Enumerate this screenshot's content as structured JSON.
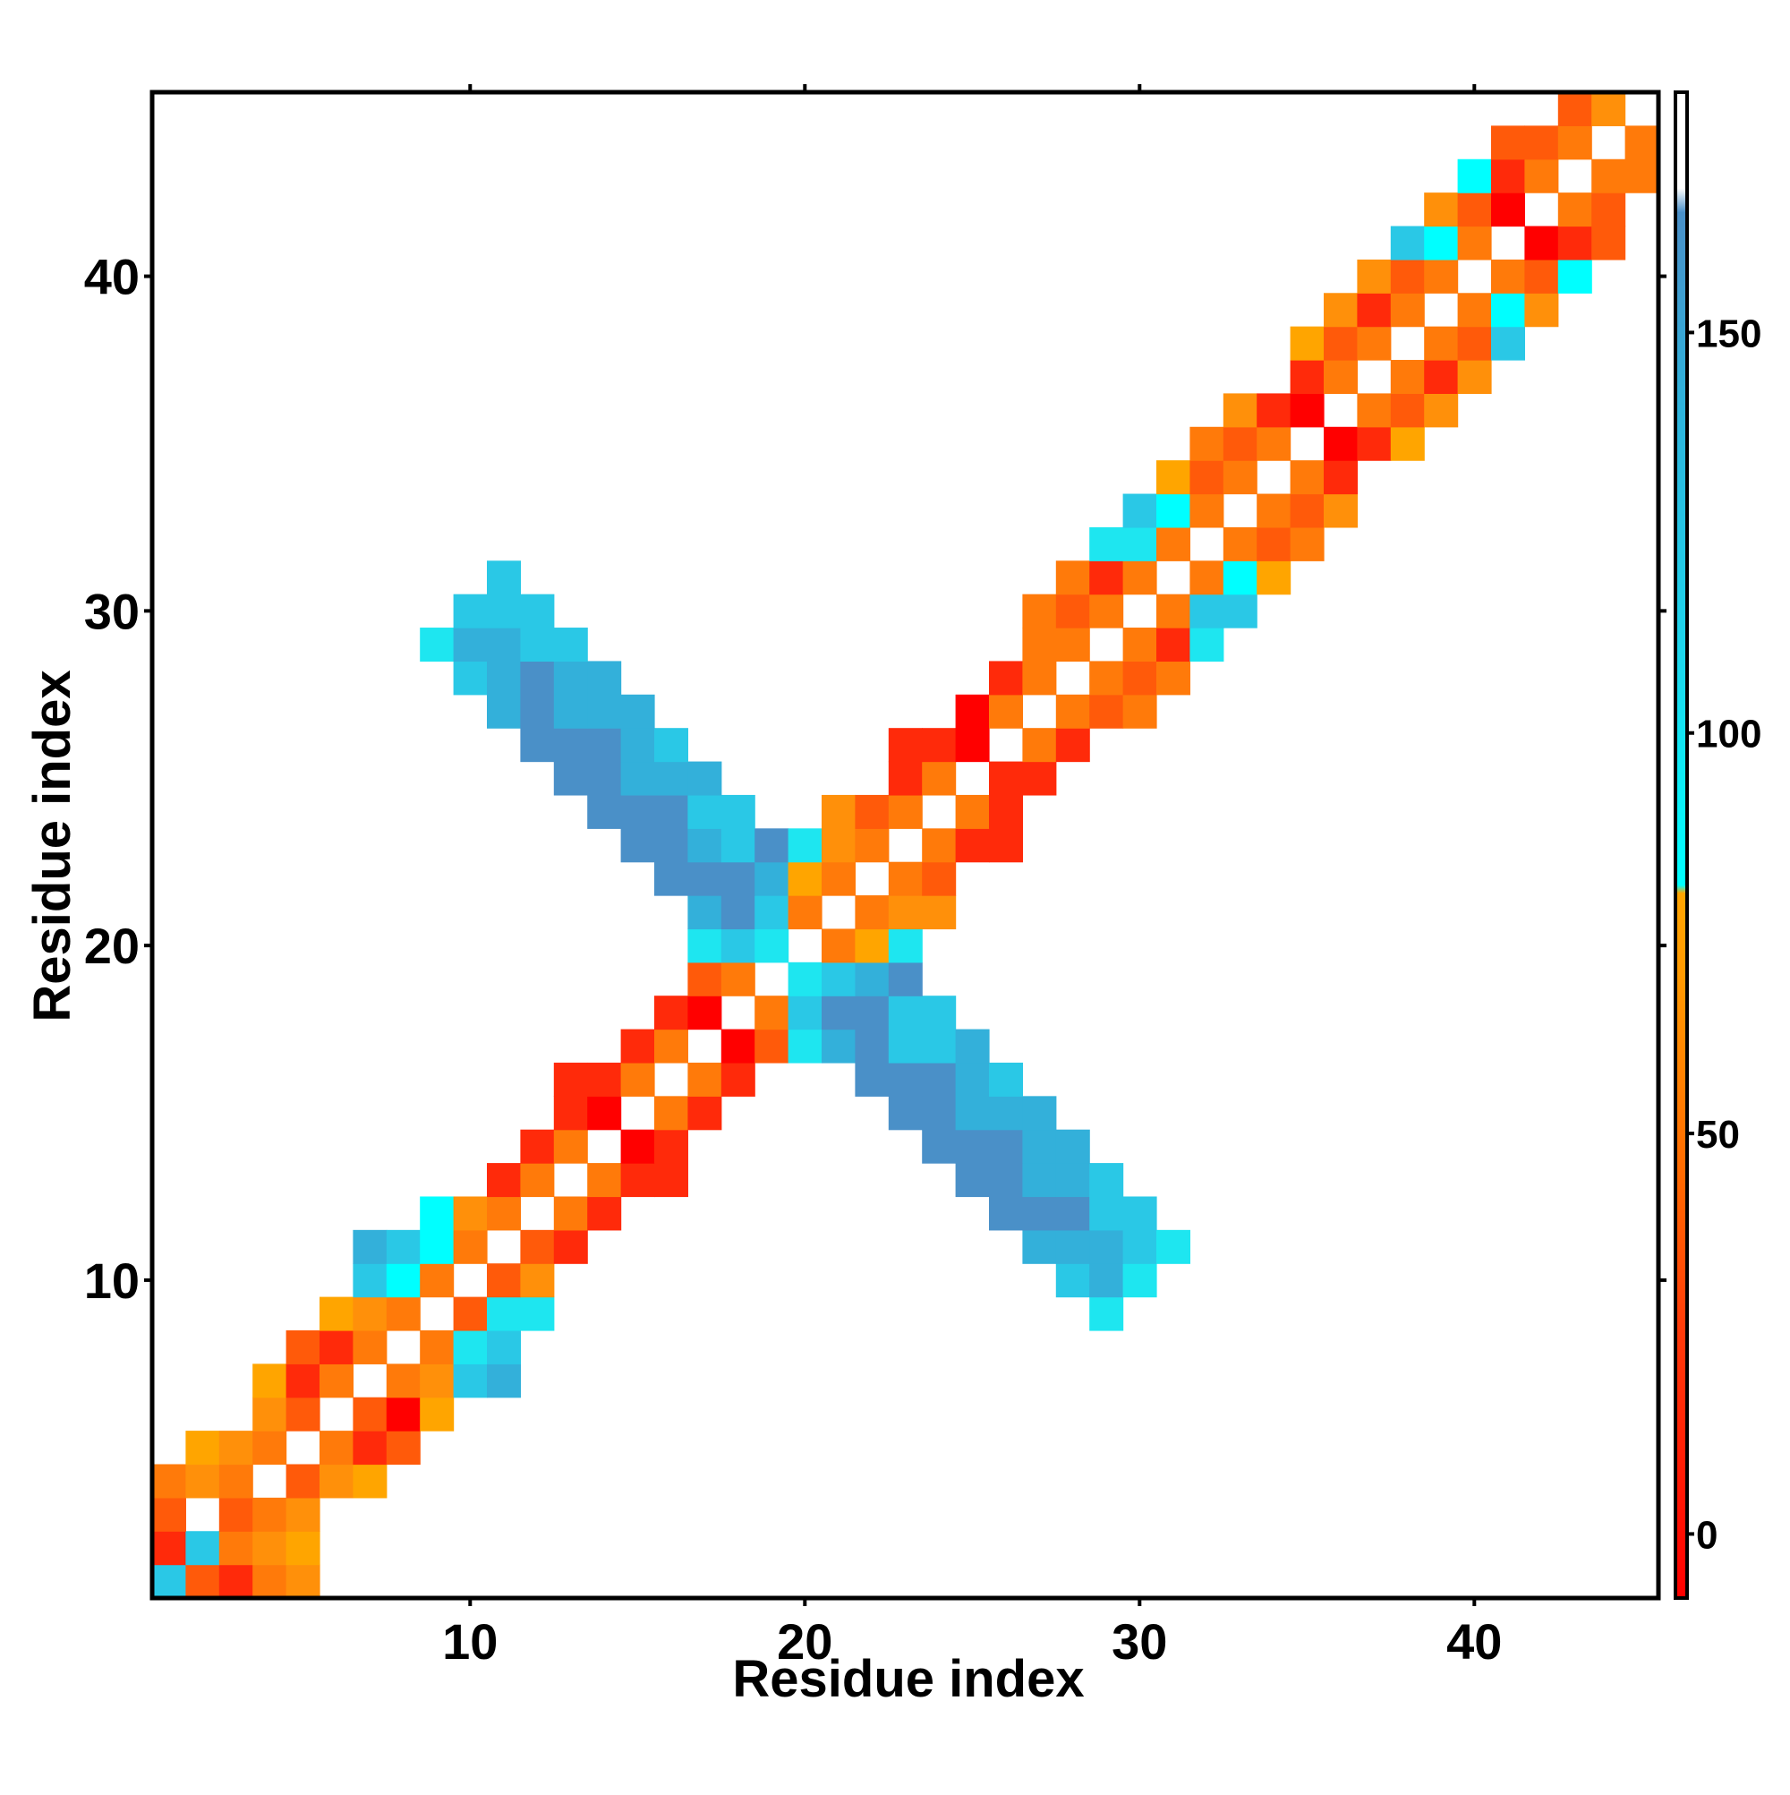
{
  "chart_data": {
    "type": "heatmap",
    "xlabel": "Residue index",
    "ylabel": "Residue index",
    "xlim": [
      0.5,
      45.5
    ],
    "ylim": [
      0.5,
      45.5
    ],
    "xticks": [
      10,
      20,
      30,
      40
    ],
    "yticks": [
      10,
      20,
      30,
      40
    ],
    "grid": false,
    "legend": "colorbar right",
    "colorbar": {
      "range": [
        -8,
        180
      ],
      "ticks": [
        0,
        50,
        100,
        150
      ],
      "stops": [
        {
          "value": -8,
          "color": "#ff0000"
        },
        {
          "value": 25,
          "color": "#ff3a0a"
        },
        {
          "value": 45,
          "color": "#ff6a00"
        },
        {
          "value": 70,
          "color": "#ff9a00"
        },
        {
          "value": 80,
          "color": "#ffa500"
        },
        {
          "value": 81,
          "color": "#00ffff"
        },
        {
          "value": 110,
          "color": "#1ed6ec"
        },
        {
          "value": 140,
          "color": "#2eb4dc"
        },
        {
          "value": 165,
          "color": "#4a90c8"
        },
        {
          "value": 168,
          "color": "#ffffff"
        },
        {
          "value": 180,
          "color": "#ffffff"
        }
      ]
    },
    "color_key": {
      "A": "#ff0000",
      "B": "#ff2a0a",
      "C": "#ff5a0a",
      "D": "#ff7a0a",
      "E": "#ff900a",
      "F": "#ffa500",
      "G": "#00ffff",
      "H": "#1ee6f0",
      "I": "#2ac8e6",
      "J": "#33b0da",
      "K": "#4a90c8"
    },
    "cells": [
      [
        1,
        1,
        "I"
      ],
      [
        2,
        1,
        "C"
      ],
      [
        3,
        1,
        "B"
      ],
      [
        4,
        1,
        "D"
      ],
      [
        5,
        1,
        "E"
      ],
      [
        1,
        2,
        "B"
      ],
      [
        2,
        2,
        "I"
      ],
      [
        3,
        2,
        "D"
      ],
      [
        4,
        2,
        "E"
      ],
      [
        5,
        2,
        "F"
      ],
      [
        1,
        3,
        "C"
      ],
      [
        3,
        3,
        "C"
      ],
      [
        4,
        3,
        "D"
      ],
      [
        5,
        3,
        "E"
      ],
      [
        1,
        4,
        "D"
      ],
      [
        2,
        4,
        "E"
      ],
      [
        3,
        4,
        "D"
      ],
      [
        5,
        4,
        "C"
      ],
      [
        6,
        4,
        "E"
      ],
      [
        7,
        4,
        "F"
      ],
      [
        2,
        5,
        "F"
      ],
      [
        3,
        5,
        "E"
      ],
      [
        4,
        5,
        "D"
      ],
      [
        6,
        5,
        "D"
      ],
      [
        7,
        5,
        "B"
      ],
      [
        8,
        5,
        "C"
      ],
      [
        4,
        6,
        "E"
      ],
      [
        5,
        6,
        "C"
      ],
      [
        7,
        6,
        "C"
      ],
      [
        8,
        6,
        "A"
      ],
      [
        9,
        6,
        "F"
      ],
      [
        4,
        7,
        "F"
      ],
      [
        5,
        7,
        "B"
      ],
      [
        6,
        7,
        "D"
      ],
      [
        8,
        7,
        "D"
      ],
      [
        9,
        7,
        "E"
      ],
      [
        10,
        7,
        "I"
      ],
      [
        11,
        7,
        "J"
      ],
      [
        5,
        8,
        "C"
      ],
      [
        6,
        8,
        "B"
      ],
      [
        7,
        8,
        "D"
      ],
      [
        9,
        8,
        "D"
      ],
      [
        10,
        8,
        "H"
      ],
      [
        11,
        8,
        "I"
      ],
      [
        6,
        9,
        "F"
      ],
      [
        7,
        9,
        "E"
      ],
      [
        8,
        9,
        "D"
      ],
      [
        10,
        9,
        "C"
      ],
      [
        11,
        9,
        "H"
      ],
      [
        12,
        9,
        "H"
      ],
      [
        29,
        9,
        "H"
      ],
      [
        7,
        10,
        "I"
      ],
      [
        8,
        10,
        "G"
      ],
      [
        9,
        10,
        "D"
      ],
      [
        11,
        10,
        "C"
      ],
      [
        12,
        10,
        "E"
      ],
      [
        28,
        10,
        "I"
      ],
      [
        29,
        10,
        "J"
      ],
      [
        30,
        10,
        "H"
      ],
      [
        7,
        11,
        "J"
      ],
      [
        8,
        11,
        "I"
      ],
      [
        9,
        11,
        "G"
      ],
      [
        10,
        11,
        "D"
      ],
      [
        12,
        11,
        "C"
      ],
      [
        13,
        11,
        "B"
      ],
      [
        27,
        11,
        "J"
      ],
      [
        28,
        11,
        "J"
      ],
      [
        29,
        11,
        "J"
      ],
      [
        30,
        11,
        "I"
      ],
      [
        31,
        11,
        "H"
      ],
      [
        9,
        12,
        "G"
      ],
      [
        10,
        12,
        "E"
      ],
      [
        11,
        12,
        "D"
      ],
      [
        13,
        12,
        "D"
      ],
      [
        14,
        12,
        "B"
      ],
      [
        26,
        12,
        "K"
      ],
      [
        27,
        12,
        "K"
      ],
      [
        28,
        12,
        "K"
      ],
      [
        29,
        12,
        "I"
      ],
      [
        30,
        12,
        "I"
      ],
      [
        11,
        13,
        "B"
      ],
      [
        12,
        13,
        "D"
      ],
      [
        14,
        13,
        "D"
      ],
      [
        15,
        13,
        "B"
      ],
      [
        16,
        13,
        "B"
      ],
      [
        25,
        13,
        "K"
      ],
      [
        26,
        13,
        "K"
      ],
      [
        27,
        13,
        "J"
      ],
      [
        28,
        13,
        "J"
      ],
      [
        29,
        13,
        "I"
      ],
      [
        12,
        14,
        "B"
      ],
      [
        13,
        14,
        "D"
      ],
      [
        15,
        14,
        "A"
      ],
      [
        16,
        14,
        "B"
      ],
      [
        24,
        14,
        "K"
      ],
      [
        25,
        14,
        "K"
      ],
      [
        26,
        14,
        "K"
      ],
      [
        27,
        14,
        "J"
      ],
      [
        28,
        14,
        "J"
      ],
      [
        13,
        15,
        "B"
      ],
      [
        14,
        15,
        "A"
      ],
      [
        16,
        15,
        "D"
      ],
      [
        17,
        15,
        "B"
      ],
      [
        23,
        15,
        "K"
      ],
      [
        24,
        15,
        "K"
      ],
      [
        25,
        15,
        "J"
      ],
      [
        26,
        15,
        "J"
      ],
      [
        27,
        15,
        "J"
      ],
      [
        13,
        16,
        "B"
      ],
      [
        14,
        16,
        "B"
      ],
      [
        15,
        16,
        "D"
      ],
      [
        17,
        16,
        "D"
      ],
      [
        18,
        16,
        "B"
      ],
      [
        22,
        16,
        "K"
      ],
      [
        23,
        16,
        "K"
      ],
      [
        24,
        16,
        "K"
      ],
      [
        25,
        16,
        "J"
      ],
      [
        26,
        16,
        "I"
      ],
      [
        15,
        17,
        "B"
      ],
      [
        16,
        17,
        "D"
      ],
      [
        18,
        17,
        "A"
      ],
      [
        19,
        17,
        "C"
      ],
      [
        20,
        17,
        "H"
      ],
      [
        21,
        17,
        "J"
      ],
      [
        22,
        17,
        "K"
      ],
      [
        23,
        17,
        "I"
      ],
      [
        24,
        17,
        "I"
      ],
      [
        25,
        17,
        "J"
      ],
      [
        16,
        18,
        "B"
      ],
      [
        17,
        18,
        "A"
      ],
      [
        19,
        18,
        "D"
      ],
      [
        20,
        18,
        "I"
      ],
      [
        21,
        18,
        "K"
      ],
      [
        22,
        18,
        "K"
      ],
      [
        23,
        18,
        "I"
      ],
      [
        24,
        18,
        "I"
      ],
      [
        17,
        19,
        "C"
      ],
      [
        18,
        19,
        "D"
      ],
      [
        20,
        19,
        "H"
      ],
      [
        21,
        19,
        "I"
      ],
      [
        22,
        19,
        "J"
      ],
      [
        23,
        19,
        "K"
      ],
      [
        17,
        20,
        "H"
      ],
      [
        18,
        20,
        "I"
      ],
      [
        19,
        20,
        "H"
      ],
      [
        21,
        20,
        "D"
      ],
      [
        22,
        20,
        "F"
      ],
      [
        23,
        20,
        "H"
      ],
      [
        17,
        21,
        "J"
      ],
      [
        18,
        21,
        "K"
      ],
      [
        19,
        21,
        "I"
      ],
      [
        20,
        21,
        "D"
      ],
      [
        22,
        21,
        "D"
      ],
      [
        23,
        21,
        "E"
      ],
      [
        24,
        21,
        "E"
      ],
      [
        16,
        22,
        "K"
      ],
      [
        17,
        22,
        "K"
      ],
      [
        18,
        22,
        "K"
      ],
      [
        19,
        22,
        "J"
      ],
      [
        20,
        22,
        "F"
      ],
      [
        21,
        22,
        "D"
      ],
      [
        23,
        22,
        "D"
      ],
      [
        24,
        22,
        "C"
      ],
      [
        15,
        23,
        "K"
      ],
      [
        16,
        23,
        "K"
      ],
      [
        17,
        23,
        "J"
      ],
      [
        18,
        23,
        "I"
      ],
      [
        19,
        23,
        "K"
      ],
      [
        20,
        23,
        "H"
      ],
      [
        21,
        23,
        "E"
      ],
      [
        22,
        23,
        "D"
      ],
      [
        24,
        23,
        "D"
      ],
      [
        25,
        23,
        "B"
      ],
      [
        26,
        23,
        "B"
      ],
      [
        14,
        24,
        "K"
      ],
      [
        15,
        24,
        "K"
      ],
      [
        16,
        24,
        "K"
      ],
      [
        17,
        24,
        "I"
      ],
      [
        18,
        24,
        "I"
      ],
      [
        21,
        24,
        "E"
      ],
      [
        22,
        24,
        "C"
      ],
      [
        23,
        24,
        "D"
      ],
      [
        25,
        24,
        "D"
      ],
      [
        26,
        24,
        "B"
      ],
      [
        13,
        25,
        "K"
      ],
      [
        14,
        25,
        "K"
      ],
      [
        15,
        25,
        "J"
      ],
      [
        16,
        25,
        "J"
      ],
      [
        17,
        25,
        "J"
      ],
      [
        23,
        25,
        "B"
      ],
      [
        24,
        25,
        "D"
      ],
      [
        26,
        25,
        "B"
      ],
      [
        27,
        25,
        "B"
      ],
      [
        12,
        26,
        "K"
      ],
      [
        13,
        26,
        "K"
      ],
      [
        14,
        26,
        "K"
      ],
      [
        15,
        26,
        "J"
      ],
      [
        16,
        26,
        "I"
      ],
      [
        23,
        26,
        "B"
      ],
      [
        24,
        26,
        "B"
      ],
      [
        25,
        26,
        "A"
      ],
      [
        27,
        26,
        "D"
      ],
      [
        28,
        26,
        "B"
      ],
      [
        11,
        27,
        "J"
      ],
      [
        12,
        27,
        "K"
      ],
      [
        13,
        27,
        "J"
      ],
      [
        14,
        27,
        "J"
      ],
      [
        15,
        27,
        "J"
      ],
      [
        25,
        27,
        "A"
      ],
      [
        26,
        27,
        "D"
      ],
      [
        28,
        27,
        "D"
      ],
      [
        29,
        27,
        "C"
      ],
      [
        30,
        27,
        "D"
      ],
      [
        10,
        28,
        "I"
      ],
      [
        11,
        28,
        "J"
      ],
      [
        12,
        28,
        "K"
      ],
      [
        13,
        28,
        "J"
      ],
      [
        14,
        28,
        "J"
      ],
      [
        26,
        28,
        "B"
      ],
      [
        27,
        28,
        "D"
      ],
      [
        29,
        28,
        "D"
      ],
      [
        30,
        28,
        "C"
      ],
      [
        31,
        28,
        "D"
      ],
      [
        9,
        29,
        "H"
      ],
      [
        10,
        29,
        "J"
      ],
      [
        11,
        29,
        "J"
      ],
      [
        12,
        29,
        "I"
      ],
      [
        13,
        29,
        "I"
      ],
      [
        27,
        29,
        "D"
      ],
      [
        28,
        29,
        "D"
      ],
      [
        30,
        29,
        "D"
      ],
      [
        31,
        29,
        "B"
      ],
      [
        32,
        29,
        "H"
      ],
      [
        10,
        30,
        "I"
      ],
      [
        11,
        30,
        "I"
      ],
      [
        12,
        30,
        "I"
      ],
      [
        27,
        30,
        "D"
      ],
      [
        28,
        30,
        "C"
      ],
      [
        29,
        30,
        "D"
      ],
      [
        31,
        30,
        "D"
      ],
      [
        32,
        30,
        "I"
      ],
      [
        33,
        30,
        "I"
      ],
      [
        11,
        31,
        "I"
      ],
      [
        28,
        31,
        "D"
      ],
      [
        29,
        31,
        "B"
      ],
      [
        30,
        31,
        "D"
      ],
      [
        32,
        31,
        "D"
      ],
      [
        33,
        31,
        "G"
      ],
      [
        34,
        31,
        "F"
      ],
      [
        29,
        32,
        "H"
      ],
      [
        30,
        32,
        "H"
      ],
      [
        31,
        32,
        "D"
      ],
      [
        33,
        32,
        "D"
      ],
      [
        34,
        32,
        "C"
      ],
      [
        35,
        32,
        "D"
      ],
      [
        30,
        33,
        "I"
      ],
      [
        31,
        33,
        "G"
      ],
      [
        32,
        33,
        "D"
      ],
      [
        34,
        33,
        "D"
      ],
      [
        35,
        33,
        "C"
      ],
      [
        36,
        33,
        "E"
      ],
      [
        31,
        34,
        "F"
      ],
      [
        32,
        34,
        "C"
      ],
      [
        33,
        34,
        "D"
      ],
      [
        35,
        34,
        "D"
      ],
      [
        36,
        34,
        "B"
      ],
      [
        32,
        35,
        "D"
      ],
      [
        33,
        35,
        "C"
      ],
      [
        34,
        35,
        "D"
      ],
      [
        36,
        35,
        "A"
      ],
      [
        37,
        35,
        "B"
      ],
      [
        38,
        35,
        "F"
      ],
      [
        33,
        36,
        "E"
      ],
      [
        34,
        36,
        "B"
      ],
      [
        35,
        36,
        "A"
      ],
      [
        37,
        36,
        "D"
      ],
      [
        38,
        36,
        "C"
      ],
      [
        39,
        36,
        "E"
      ],
      [
        35,
        37,
        "B"
      ],
      [
        36,
        37,
        "D"
      ],
      [
        38,
        37,
        "D"
      ],
      [
        39,
        37,
        "B"
      ],
      [
        40,
        37,
        "E"
      ],
      [
        35,
        38,
        "F"
      ],
      [
        36,
        38,
        "C"
      ],
      [
        37,
        38,
        "D"
      ],
      [
        39,
        38,
        "D"
      ],
      [
        40,
        38,
        "C"
      ],
      [
        41,
        38,
        "I"
      ],
      [
        36,
        39,
        "E"
      ],
      [
        37,
        39,
        "B"
      ],
      [
        38,
        39,
        "D"
      ],
      [
        40,
        39,
        "D"
      ],
      [
        41,
        39,
        "G"
      ],
      [
        42,
        39,
        "E"
      ],
      [
        37,
        40,
        "E"
      ],
      [
        38,
        40,
        "C"
      ],
      [
        39,
        40,
        "D"
      ],
      [
        41,
        40,
        "D"
      ],
      [
        42,
        40,
        "C"
      ],
      [
        43,
        40,
        "G"
      ],
      [
        38,
        41,
        "I"
      ],
      [
        39,
        41,
        "G"
      ],
      [
        40,
        41,
        "D"
      ],
      [
        42,
        41,
        "A"
      ],
      [
        43,
        41,
        "B"
      ],
      [
        44,
        41,
        "C"
      ],
      [
        39,
        42,
        "E"
      ],
      [
        40,
        42,
        "C"
      ],
      [
        41,
        42,
        "A"
      ],
      [
        43,
        42,
        "D"
      ],
      [
        44,
        42,
        "C"
      ],
      [
        40,
        43,
        "G"
      ],
      [
        41,
        43,
        "B"
      ],
      [
        42,
        43,
        "D"
      ],
      [
        44,
        43,
        "D"
      ],
      [
        45,
        43,
        "D"
      ],
      [
        41,
        44,
        "C"
      ],
      [
        42,
        44,
        "C"
      ],
      [
        43,
        44,
        "D"
      ],
      [
        45,
        44,
        "D"
      ],
      [
        43,
        45,
        "C"
      ],
      [
        44,
        45,
        "E"
      ]
    ]
  }
}
